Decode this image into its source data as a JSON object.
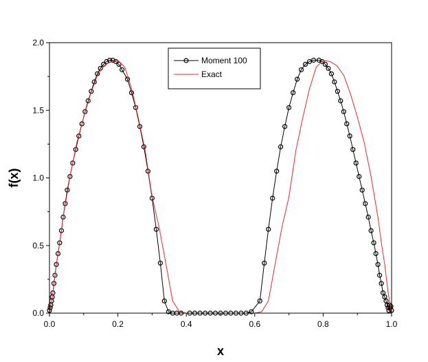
{
  "chart_data": {
    "type": "line",
    "xlabel": "x",
    "ylabel": "f(x)",
    "xlim": [
      0.0,
      1.0
    ],
    "ylim": [
      0.0,
      2.0
    ],
    "xticks": [
      "0.0",
      "0.2",
      "0.4",
      "0.6",
      "0.8",
      "1.0"
    ],
    "yticks": [
      "0.0",
      "0.5",
      "1.0",
      "1.5",
      "2.0"
    ],
    "grid": false,
    "legend_position": "top-center",
    "series": [
      {
        "name": "Moment 100",
        "style": "line-with-open-circles",
        "color": "#000000",
        "x": [
          0.0,
          0.002,
          0.004,
          0.006,
          0.008,
          0.01,
          0.013,
          0.016,
          0.02,
          0.025,
          0.03,
          0.035,
          0.04,
          0.046,
          0.052,
          0.06,
          0.068,
          0.077,
          0.086,
          0.095,
          0.104,
          0.113,
          0.122,
          0.131,
          0.14,
          0.149,
          0.158,
          0.167,
          0.176,
          0.185,
          0.194,
          0.203,
          0.212,
          0.228,
          0.24,
          0.252,
          0.264,
          0.276,
          0.288,
          0.3,
          0.312,
          0.324,
          0.336,
          0.348,
          0.36,
          0.372,
          0.385,
          0.41,
          0.425,
          0.44,
          0.455,
          0.47,
          0.485,
          0.5,
          0.515,
          0.53,
          0.545,
          0.56,
          0.575,
          0.59,
          0.615,
          0.628,
          0.64,
          0.652,
          0.664,
          0.676,
          0.688,
          0.7,
          0.712,
          0.724,
          0.736,
          0.748,
          0.76,
          0.772,
          0.788,
          0.797,
          0.806,
          0.815,
          0.824,
          0.833,
          0.842,
          0.851,
          0.86,
          0.869,
          0.878,
          0.887,
          0.896,
          0.905,
          0.914,
          0.923,
          0.932,
          0.94,
          0.948,
          0.954,
          0.96,
          0.965,
          0.97,
          0.975,
          0.98,
          0.984,
          0.987,
          0.99,
          0.992,
          0.994,
          0.996,
          0.998,
          1.0
        ],
        "y": [
          0.02,
          0.04,
          0.06,
          0.09,
          0.12,
          0.15,
          0.22,
          0.28,
          0.36,
          0.44,
          0.52,
          0.61,
          0.71,
          0.81,
          0.91,
          1.01,
          1.11,
          1.21,
          1.31,
          1.4,
          1.49,
          1.57,
          1.64,
          1.71,
          1.77,
          1.81,
          1.84,
          1.86,
          1.87,
          1.87,
          1.86,
          1.84,
          1.8,
          1.73,
          1.63,
          1.52,
          1.38,
          1.23,
          1.05,
          0.85,
          0.62,
          0.37,
          0.09,
          0.01,
          0.0,
          0.0,
          0.0,
          0.0,
          0.0,
          0.0,
          0.0,
          0.0,
          0.0,
          0.0,
          0.0,
          0.0,
          0.0,
          0.0,
          0.0,
          0.01,
          0.09,
          0.37,
          0.62,
          0.85,
          1.05,
          1.23,
          1.38,
          1.52,
          1.63,
          1.73,
          1.8,
          1.84,
          1.86,
          1.87,
          1.87,
          1.86,
          1.84,
          1.81,
          1.77,
          1.71,
          1.64,
          1.57,
          1.49,
          1.4,
          1.31,
          1.21,
          1.11,
          1.01,
          0.91,
          0.81,
          0.71,
          0.61,
          0.52,
          0.44,
          0.36,
          0.28,
          0.22,
          0.15,
          0.12,
          0.09,
          0.06,
          0.04,
          0.02,
          0.06,
          0.04,
          0.05,
          0.02
        ]
      },
      {
        "name": "Exact",
        "style": "line",
        "color": "#e8262a",
        "x": [
          0.0,
          0.01,
          0.02,
          0.03,
          0.04,
          0.06,
          0.08,
          0.1,
          0.12,
          0.14,
          0.16,
          0.18,
          0.2,
          0.22,
          0.24,
          0.26,
          0.28,
          0.3,
          0.32,
          0.34,
          0.36,
          0.38,
          0.4,
          0.42,
          0.5,
          0.58,
          0.6,
          0.62,
          0.64,
          0.66,
          0.68,
          0.7,
          0.72,
          0.74,
          0.76,
          0.78,
          0.8,
          0.82,
          0.84,
          0.86,
          0.88,
          0.9,
          0.92,
          0.94,
          0.96,
          0.97,
          0.98,
          0.99,
          1.0
        ],
        "y": [
          0.0,
          0.15,
          0.36,
          0.52,
          0.71,
          1.01,
          1.26,
          1.45,
          1.62,
          1.76,
          1.83,
          1.86,
          1.87,
          1.82,
          1.66,
          1.44,
          1.2,
          0.86,
          0.64,
          0.37,
          0.09,
          0.01,
          0.0,
          0.0,
          0.0,
          0.0,
          0.0,
          0.01,
          0.09,
          0.37,
          0.64,
          0.86,
          1.2,
          1.44,
          1.66,
          1.82,
          1.87,
          1.86,
          1.83,
          1.76,
          1.62,
          1.45,
          1.26,
          1.01,
          0.71,
          0.52,
          0.36,
          0.15,
          0.0
        ]
      }
    ]
  }
}
